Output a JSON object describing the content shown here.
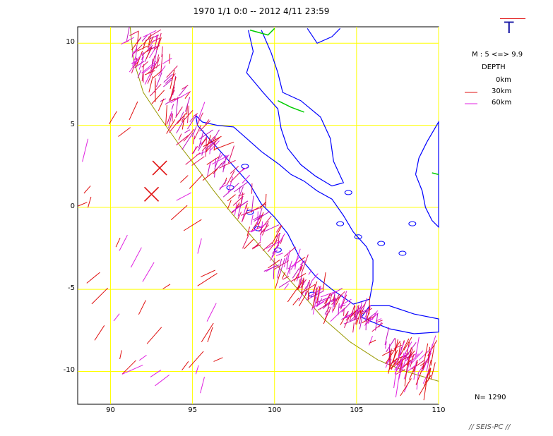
{
  "title": "1970 1/1 0:0 -- 2012 4/11 23:59",
  "symbol": "T",
  "magnitude_label": "M : 5 <=> 9.9",
  "depth_title": "DEPTH",
  "depth_legend": [
    {
      "label": "0km",
      "color": "#ffffff"
    },
    {
      "label": "30km",
      "color": "#e01010"
    },
    {
      "label": "60km",
      "color": "#e020e0"
    }
  ],
  "count_label": "N= 1290",
  "footer": "// SEIS-PC //",
  "map": {
    "lon_range": [
      88,
      110
    ],
    "lat_range": [
      -12,
      11
    ],
    "lon_ticks": [
      {
        "v": 90,
        "t": "90"
      },
      {
        "v": 95,
        "t": "95"
      },
      {
        "v": 100,
        "t": "100"
      },
      {
        "v": 105,
        "t": "105"
      },
      {
        "v": 110,
        "t": "110"
      }
    ],
    "lat_ticks": [
      {
        "v": 10,
        "t": "10"
      },
      {
        "v": 5,
        "t": "5"
      },
      {
        "v": 0,
        "t": "0"
      },
      {
        "v": -5,
        "t": "-5"
      },
      {
        "v": -10,
        "t": "-10"
      }
    ],
    "grid_color": "#ffff00",
    "coast_color": "#0000ff",
    "border_color": "#00cc00",
    "trench_color": "#999900",
    "mainshock_color": "#e01010"
  }
}
